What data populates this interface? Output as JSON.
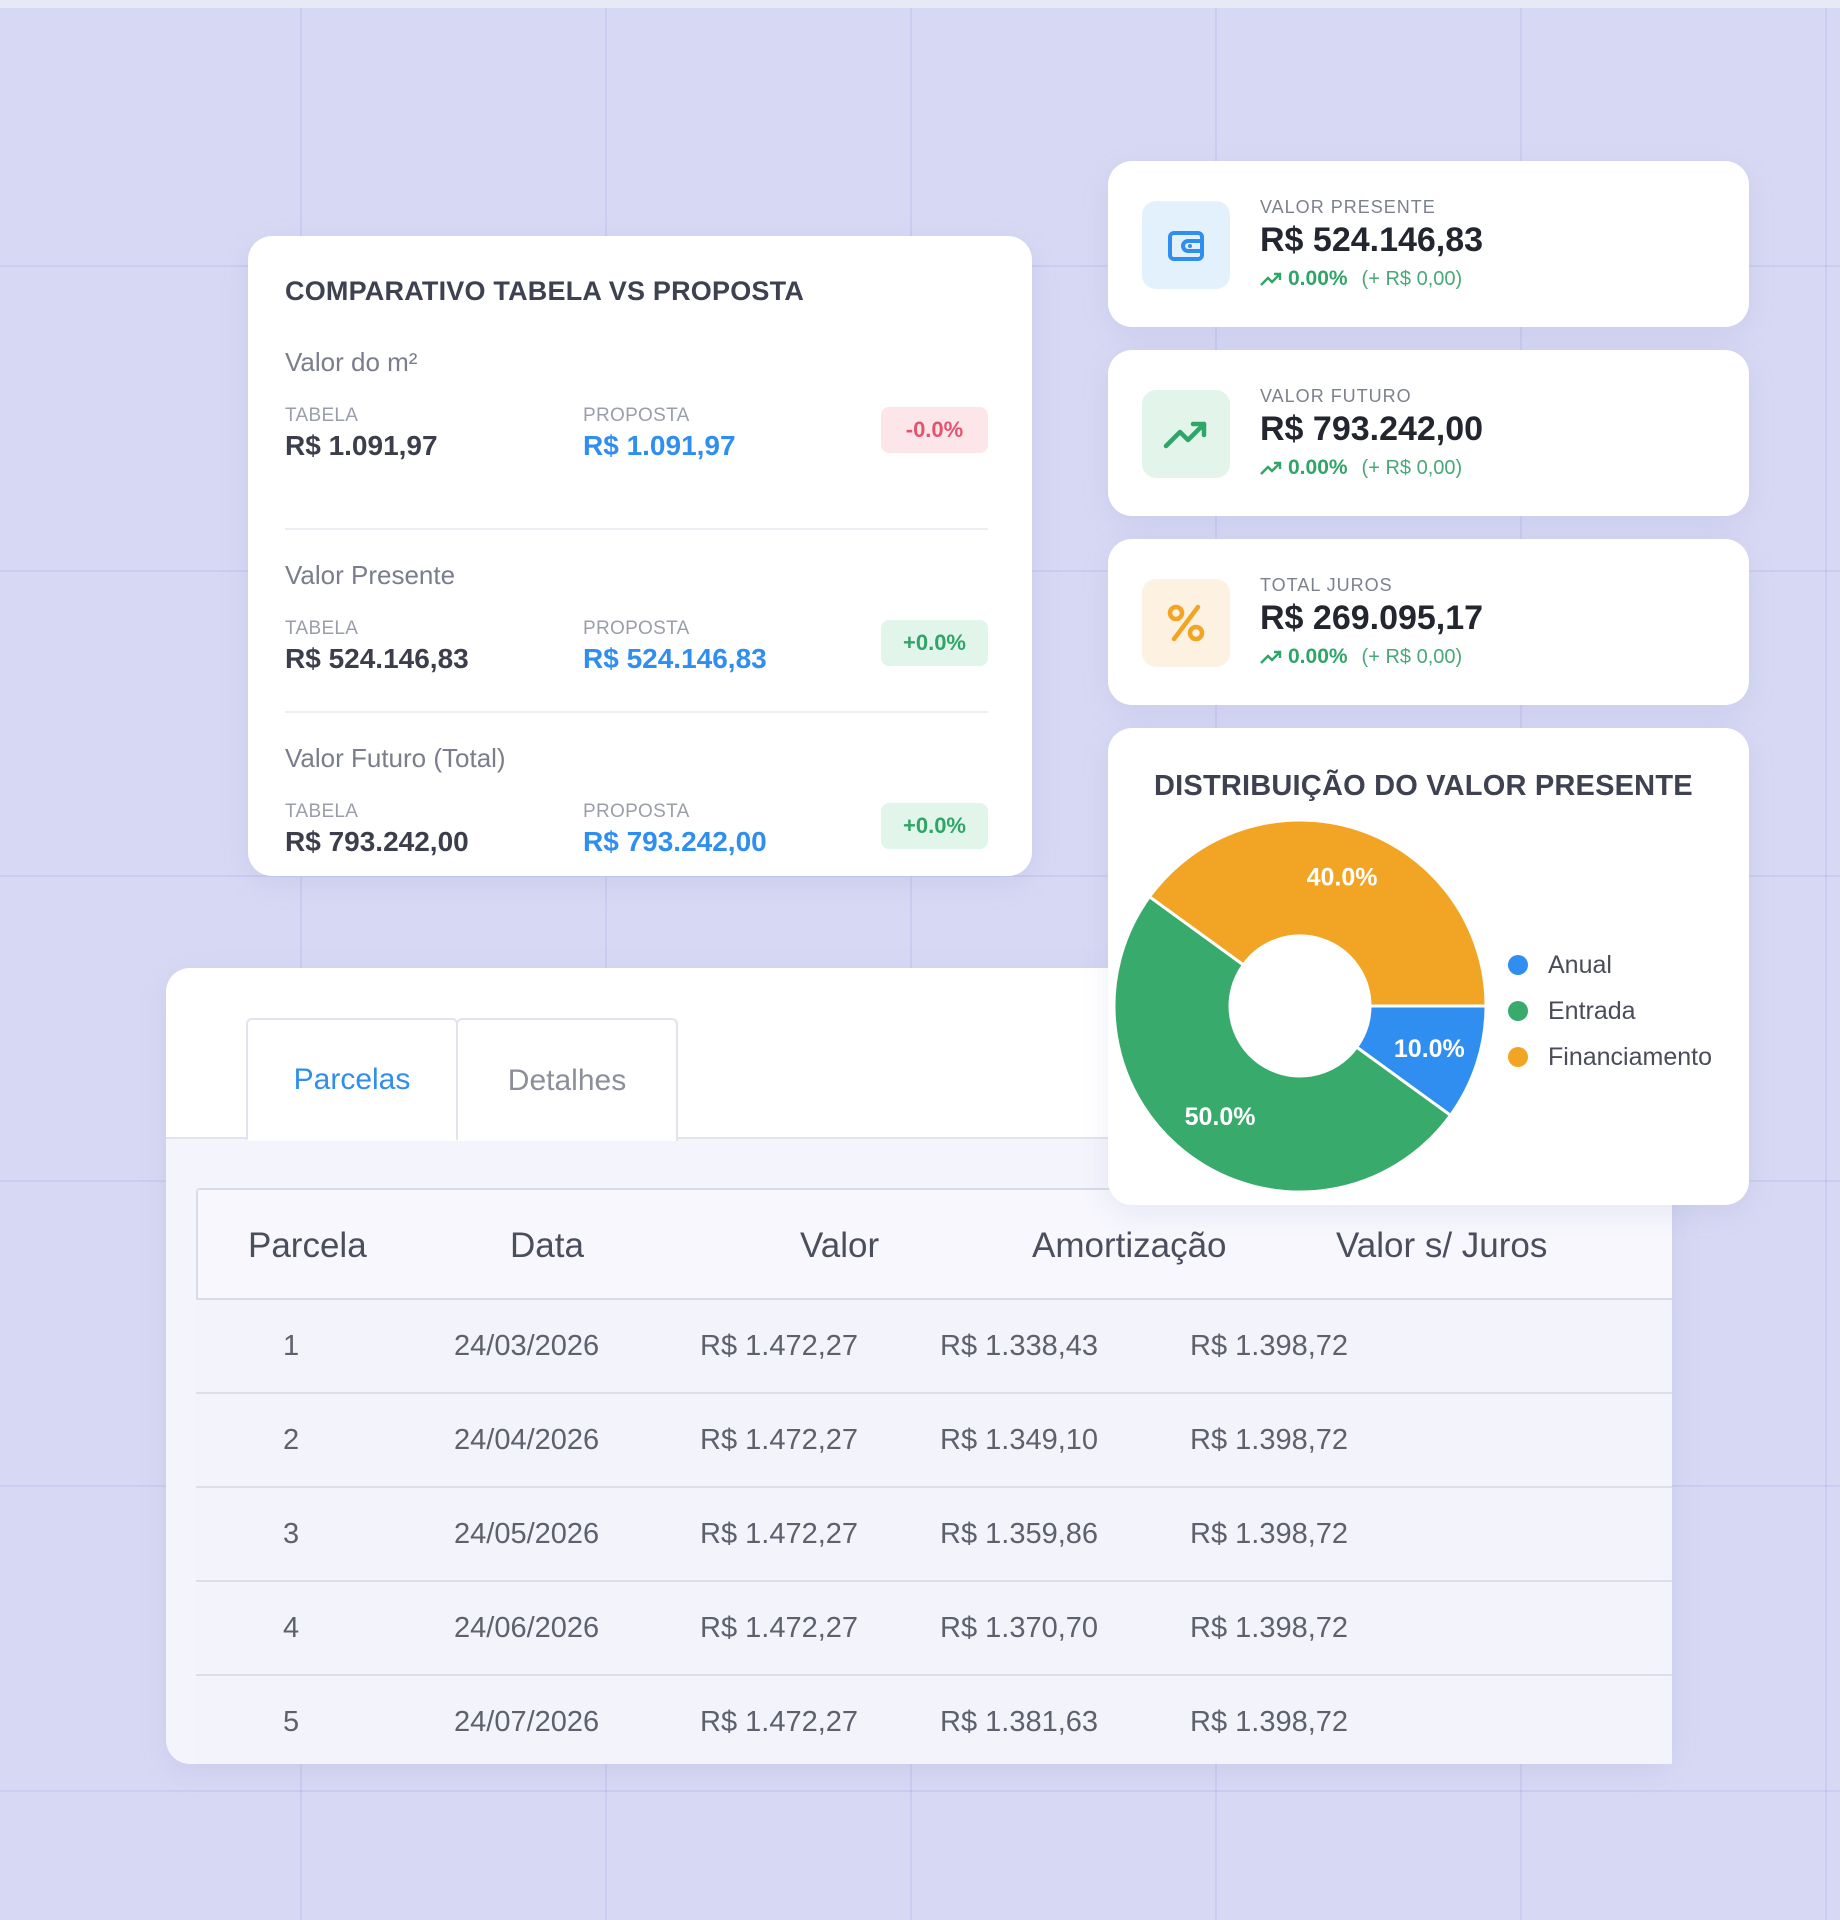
{
  "comparativo": {
    "title": "COMPARATIVO TABELA VS PROPOSTA",
    "sections": [
      {
        "label": "Valor do m²",
        "tabela_label": "TABELA",
        "tabela": "R$ 1.091,97",
        "proposta_label": "PROPOSTA",
        "proposta": "R$ 1.091,97",
        "pct": "-0.0%"
      },
      {
        "label": "Valor Presente",
        "tabela_label": "TABELA",
        "tabela": "R$ 524.146,83",
        "proposta_label": "PROPOSTA",
        "proposta": "R$ 524.146,83",
        "pct": "+0.0%"
      },
      {
        "label": "Valor Futuro (Total)",
        "tabela_label": "TABELA",
        "tabela": "R$ 793.242,00",
        "proposta_label": "PROPOSTA",
        "proposta": "R$ 793.242,00",
        "pct": "+0.0%"
      }
    ]
  },
  "stats": [
    {
      "label": "VALOR PRESENTE",
      "value": "R$ 524.146,83",
      "pct": "0.00%",
      "delta": "(+ R$ 0,00)",
      "icon": "wallet-icon"
    },
    {
      "label": "VALOR FUTURO",
      "value": "R$ 793.242,00",
      "pct": "0.00%",
      "delta": "(+ R$ 0,00)",
      "icon": "trending-up-icon"
    },
    {
      "label": "TOTAL JUROS",
      "value": "R$ 269.095,17",
      "pct": "0.00%",
      "delta": "(+ R$ 0,00)",
      "icon": "percent-icon"
    }
  ],
  "colors": {
    "accent_blue": "#2f8ef0",
    "positive_green": "#2fa567",
    "negative_red": "#e4546e",
    "anual": "#2f8ef0",
    "entrada": "#38ab6c",
    "financiamento": "#f2a524"
  },
  "chart_data": {
    "type": "pie",
    "title": "DISTRIBUIÇÃO DO VALOR PRESENTE",
    "categories": [
      "Anual",
      "Entrada",
      "Financiamento"
    ],
    "values": [
      10.0,
      50.0,
      40.0
    ],
    "value_labels": [
      "10.0%",
      "50.0%",
      "40.0%"
    ],
    "colors": [
      "#2f8ef0",
      "#38ab6c",
      "#f2a524"
    ],
    "legend": "right",
    "donut": true
  },
  "tabs": [
    {
      "label": "Parcelas",
      "active": true
    },
    {
      "label": "Detalhes",
      "active": false
    }
  ],
  "table": {
    "headers": [
      "Parcela",
      "Data",
      "Valor",
      "Amortização",
      "Valor s/ Juros"
    ],
    "rows": [
      [
        "1",
        "24/03/2026",
        "R$ 1.472,27",
        "R$ 1.338,43",
        "R$ 1.398,72"
      ],
      [
        "2",
        "24/04/2026",
        "R$ 1.472,27",
        "R$ 1.349,10",
        "R$ 1.398,72"
      ],
      [
        "3",
        "24/05/2026",
        "R$ 1.472,27",
        "R$ 1.359,86",
        "R$ 1.398,72"
      ],
      [
        "4",
        "24/06/2026",
        "R$ 1.472,27",
        "R$ 1.370,70",
        "R$ 1.398,72"
      ],
      [
        "5",
        "24/07/2026",
        "R$ 1.472,27",
        "R$ 1.381,63",
        "R$ 1.398,72"
      ]
    ]
  }
}
